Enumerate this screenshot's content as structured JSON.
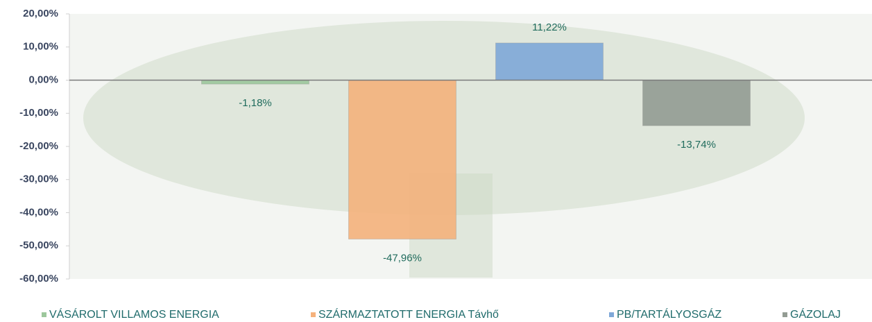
{
  "chart_data": {
    "type": "bar",
    "categories": [
      null
    ],
    "series": [
      {
        "name": "VÁSÁROLT VILLAMOS ENERGIA",
        "color": "#9cc79c",
        "values": [
          -1.18
        ],
        "value_labels": [
          "-1,18%"
        ]
      },
      {
        "name": "SZÁRMAZTATOTT ENERGIA Távhő",
        "color": "#f5b27c",
        "values": [
          -47.96
        ],
        "value_labels": [
          "-47,96%"
        ]
      },
      {
        "name": "PB/TARTÁLYOSGÁZ",
        "color": "#7fa8d8",
        "values": [
          11.22
        ],
        "value_labels": [
          "11,22%"
        ]
      },
      {
        "name": "GÁZOLAJ",
        "color": "#939c93",
        "values": [
          -13.74
        ],
        "value_labels": [
          "-13,74%"
        ]
      }
    ],
    "ylim": [
      -60,
      20
    ],
    "yticks": [
      {
        "value": -60,
        "label": "-60,00%"
      },
      {
        "value": -50,
        "label": "-50,00%"
      },
      {
        "value": -40,
        "label": "-40,00%"
      },
      {
        "value": -30,
        "label": "-30,00%"
      },
      {
        "value": -20,
        "label": "-20,00%"
      },
      {
        "value": -10,
        "label": "-10,00%"
      },
      {
        "value": 0,
        "label": "0,00%"
      },
      {
        "value": 10,
        "label": "10,00%"
      },
      {
        "value": 20,
        "label": "20,00%"
      }
    ],
    "legend": "bottom"
  }
}
